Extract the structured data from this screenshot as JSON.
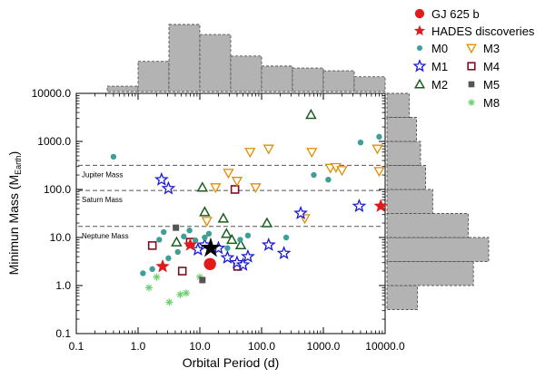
{
  "chart_data": {
    "type": "scatter",
    "title": "",
    "xlabel": "Orbital Period (d)",
    "ylabel_main": "Minimun Mass (M",
    "ylabel_sub": "Earth",
    "ylabel_close": ")",
    "x_scale": "log",
    "y_scale": "log",
    "xlim": [
      0.1,
      10000
    ],
    "ylim": [
      0.1,
      10000
    ],
    "x_ticks": [
      {
        "value": 0.1,
        "label": "0.1"
      },
      {
        "value": 1,
        "label": "1.0"
      },
      {
        "value": 10,
        "label": "10.0"
      },
      {
        "value": 100,
        "label": "100.0"
      },
      {
        "value": 1000,
        "label": "1000.0"
      },
      {
        "value": 10000,
        "label": "10000.0"
      }
    ],
    "y_ticks": [
      {
        "value": 0.1,
        "label": "0.1"
      },
      {
        "value": 1,
        "label": "1.0"
      },
      {
        "value": 10,
        "label": "10.0"
      },
      {
        "value": 100,
        "label": "100.0"
      },
      {
        "value": 1000,
        "label": "1000.0"
      },
      {
        "value": 10000,
        "label": "10000.0"
      }
    ],
    "reference_lines": [
      {
        "label": "Jupiter Mass",
        "y": 318
      },
      {
        "label": "Saturn Mass",
        "y": 95
      },
      {
        "label": "Neptune Mass",
        "y": 17
      }
    ],
    "legend_position": "top-right, outside plot",
    "series": [
      {
        "name": "GJ 625 b",
        "marker": "circle-filled",
        "color": "#e31a1c",
        "points": [
          [
            14.6,
            2.8
          ]
        ]
      },
      {
        "name": "HADES discoveries",
        "marker": "star-filled",
        "color": "#e31a1c",
        "points": [
          [
            2.5,
            2.5
          ],
          [
            7,
            7
          ],
          [
            8500,
            45
          ]
        ]
      },
      {
        "name": "M0",
        "marker": "circle-filled",
        "color": "#3f9e95",
        "points": [
          [
            0.4,
            480
          ],
          [
            1.2,
            1.8
          ],
          [
            1.7,
            2.2
          ],
          [
            2.2,
            9
          ],
          [
            2.6,
            13
          ],
          [
            3.1,
            3.7
          ],
          [
            4.4,
            5
          ],
          [
            5.5,
            10.5
          ],
          [
            6.8,
            14
          ],
          [
            8.5,
            8.7
          ],
          [
            12,
            10
          ],
          [
            14,
            12
          ],
          [
            28,
            6
          ],
          [
            45,
            9
          ],
          [
            60,
            11
          ],
          [
            250,
            10
          ],
          [
            700,
            200
          ],
          [
            1200,
            160
          ],
          [
            4000,
            950
          ],
          [
            8000,
            1250
          ]
        ]
      },
      {
        "name": "M1",
        "marker": "star-open",
        "color": "#1a1ad6",
        "points": [
          [
            2.4,
            160
          ],
          [
            3.1,
            105
          ],
          [
            9.3,
            5.6
          ],
          [
            12,
            7
          ],
          [
            20,
            6
          ],
          [
            28,
            3.8
          ],
          [
            40,
            3
          ],
          [
            50,
            2.7
          ],
          [
            60,
            4
          ],
          [
            130,
            7
          ],
          [
            230,
            4.7
          ],
          [
            430,
            32
          ],
          [
            3800,
            45
          ]
        ]
      },
      {
        "name": "M2",
        "marker": "triangle-up-open",
        "color": "#1b5e20",
        "points": [
          [
            4.2,
            8
          ],
          [
            11,
            110
          ],
          [
            12,
            34
          ],
          [
            24,
            25
          ],
          [
            27,
            12
          ],
          [
            33,
            9
          ],
          [
            46,
            7
          ],
          [
            122,
            20
          ],
          [
            630,
            3600
          ]
        ]
      },
      {
        "name": "M3",
        "marker": "triangle-down-open",
        "color": "#e38c00",
        "points": [
          [
            13,
            22
          ],
          [
            18,
            110
          ],
          [
            29,
            220
          ],
          [
            40,
            150
          ],
          [
            65,
            600
          ],
          [
            80,
            110
          ],
          [
            130,
            700
          ],
          [
            500,
            25
          ],
          [
            650,
            600
          ],
          [
            1300,
            280
          ],
          [
            1600,
            290
          ],
          [
            2000,
            250
          ],
          [
            7500,
            700
          ],
          [
            8000,
            240
          ]
        ]
      },
      {
        "name": "M4",
        "marker": "square-open",
        "color": "#7b1020",
        "points": [
          [
            1.7,
            6.8
          ],
          [
            5.2,
            2
          ],
          [
            7,
            8
          ],
          [
            37,
            100
          ],
          [
            41,
            2.5
          ]
        ]
      },
      {
        "name": "M5",
        "marker": "square-filled",
        "color": "#555555",
        "points": [
          [
            4.1,
            16
          ],
          [
            11,
            1.3
          ]
        ]
      },
      {
        "name": "M8",
        "marker": "asterisk",
        "color": "#6cd16c",
        "points": [
          [
            1.5,
            0.9
          ],
          [
            2,
            1.5
          ],
          [
            3.2,
            0.45
          ],
          [
            4.8,
            0.65
          ],
          [
            6,
            0.7
          ],
          [
            10,
            1.5
          ]
        ]
      }
    ],
    "hist_top": {
      "bin_edges_log10": [
        -1,
        -0.5,
        0,
        0.5,
        1,
        1.5,
        2,
        2.5,
        3,
        3.5,
        4
      ],
      "heights_relative": [
        0,
        0.08,
        0.45,
        1.0,
        0.85,
        0.53,
        0.38,
        0.35,
        0.31,
        0.22
      ]
    },
    "hist_right": {
      "bin_edges_log10": [
        -0.5,
        0,
        0.5,
        1,
        1.5,
        2,
        2.5,
        3,
        3.5,
        4
      ],
      "lengths_relative": [
        0.3,
        0.85,
        1.0,
        0.8,
        0.45,
        0.38,
        0.33,
        0.29,
        0.22
      ]
    }
  }
}
